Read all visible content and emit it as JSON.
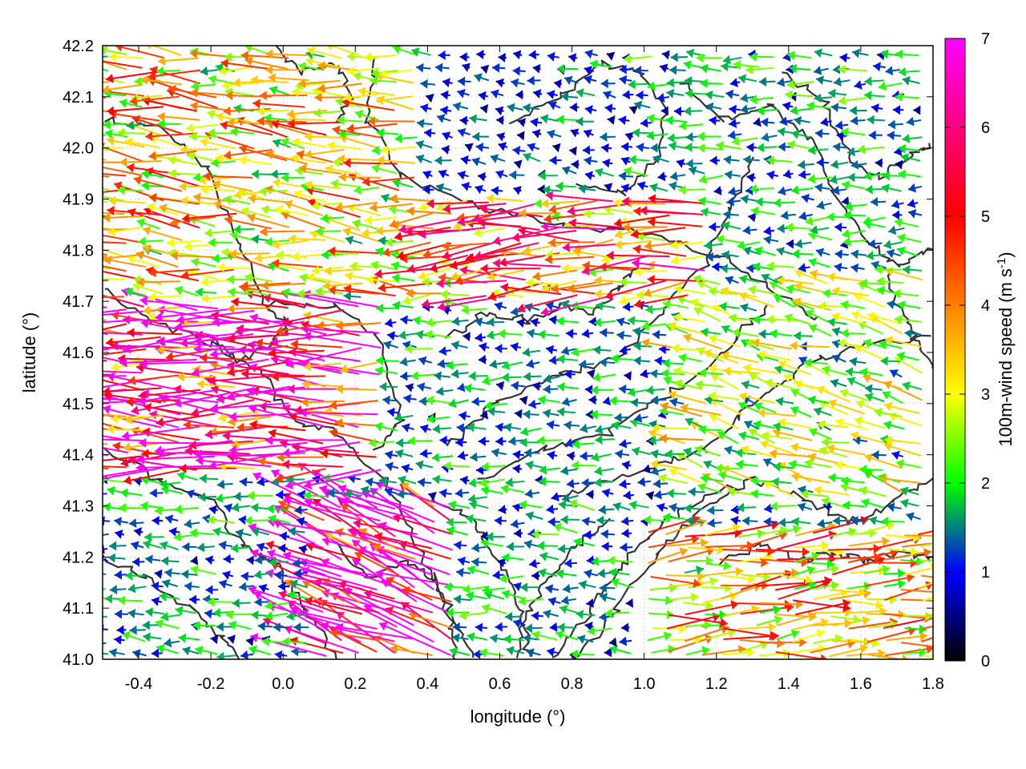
{
  "chart_data": {
    "type": "vector-field",
    "title": "",
    "xlabel": "longitude (°)",
    "ylabel": "latitude (°)",
    "xlim": [
      -0.5,
      1.8
    ],
    "ylim": [
      41.0,
      42.2
    ],
    "x_ticks": [
      "-0.4",
      "-0.2",
      "0.0",
      "0.2",
      "0.4",
      "0.6",
      "0.8",
      "1.0",
      "1.2",
      "1.4",
      "1.6",
      "1.8"
    ],
    "x_tick_values": [
      -0.4,
      -0.2,
      0.0,
      0.2,
      0.4,
      0.6,
      0.8,
      1.0,
      1.2,
      1.4,
      1.6,
      1.8
    ],
    "y_ticks": [
      "41.0",
      "41.1",
      "41.2",
      "41.3",
      "41.4",
      "41.5",
      "41.6",
      "41.7",
      "41.8",
      "41.9",
      "42.0",
      "42.1",
      "42.2"
    ],
    "y_tick_values": [
      41.0,
      41.1,
      41.2,
      41.3,
      41.4,
      41.5,
      41.6,
      41.7,
      41.8,
      41.9,
      42.0,
      42.1,
      42.2
    ],
    "colorbar": {
      "label_main": "100m-wind speed (m s",
      "label_sup": "-1",
      "label_end": ")",
      "range": [
        0,
        7
      ],
      "ticks": [
        "0",
        "1",
        "2",
        "3",
        "4",
        "5",
        "6",
        "7"
      ],
      "tick_values": [
        0,
        1,
        2,
        3,
        4,
        5,
        6,
        7
      ],
      "colors": [
        "#000000",
        "#0000ff",
        "#00ff00",
        "#ffff00",
        "#ff8000",
        "#ff0000",
        "#ff00ff"
      ]
    },
    "contour_color": "#333333",
    "grid": true,
    "wind_regions": [
      {
        "lon": [
          -0.5,
          0.3
        ],
        "lat": [
          41.35,
          41.7
        ],
        "u": -4.5,
        "v": 0.1,
        "speed": 5.8
      },
      {
        "lon": [
          0.1,
          0.5
        ],
        "lat": [
          41.0,
          41.3
        ],
        "u": -4.2,
        "v": 1.8,
        "speed": 6.5
      },
      {
        "lon": [
          -0.5,
          0.4
        ],
        "lat": [
          41.7,
          42.2
        ],
        "u": -3.0,
        "v": 0.3,
        "speed": 3.4
      },
      {
        "lon": [
          0.4,
          1.2
        ],
        "lat": [
          41.7,
          41.9
        ],
        "u": -4.0,
        "v": -0.2,
        "speed": 4.4
      },
      {
        "lon": [
          0.4,
          1.0
        ],
        "lat": [
          41.9,
          42.2
        ],
        "u": -0.6,
        "v": 0.1,
        "speed": 1.1
      },
      {
        "lon": [
          0.5,
          1.1
        ],
        "lat": [
          41.3,
          41.65
        ],
        "u": -1.0,
        "v": 0.0,
        "speed": 1.4
      },
      {
        "lon": [
          1.0,
          1.8
        ],
        "lat": [
          41.0,
          41.25
        ],
        "u": 3.5,
        "v": 0.3,
        "speed": 3.6
      },
      {
        "lon": [
          1.1,
          1.8
        ],
        "lat": [
          41.3,
          41.75
        ],
        "u": -1.8,
        "v": 0.5,
        "speed": 2.5
      },
      {
        "lon": [
          1.2,
          1.8
        ],
        "lat": [
          41.8,
          42.2
        ],
        "u": -1.5,
        "v": 0.0,
        "speed": 1.6
      }
    ]
  }
}
